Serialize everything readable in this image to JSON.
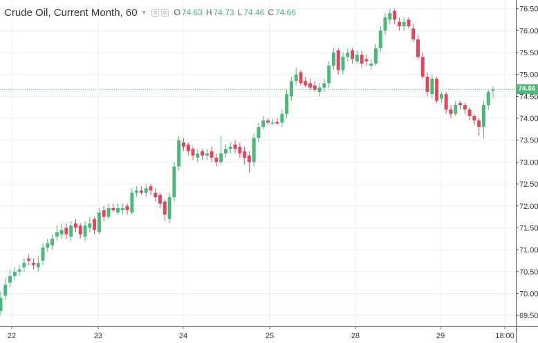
{
  "chart_data": {
    "type": "candlestick",
    "symbol": "Crude Oil, Current Month, 60",
    "ohlc": {
      "o": "74.63",
      "h": "74.73",
      "l": "74.46",
      "c": "74.66"
    },
    "last_price_label": "74.66",
    "last_price": 74.66,
    "ylim": [
      69.25,
      76.7
    ],
    "y_ticks": [
      "69.50",
      "70.00",
      "70.50",
      "71.00",
      "71.50",
      "72.00",
      "72.50",
      "73.00",
      "73.50",
      "74.00",
      "74.50",
      "75.00",
      "75.50",
      "76.00",
      "76.50"
    ],
    "x_ticks": [
      "22",
      "23",
      "24",
      "25",
      "28",
      "29",
      "18:00"
    ],
    "x_tick_positions": [
      17,
      142,
      265,
      390,
      514,
      637,
      730
    ],
    "colors": {
      "up": "#4cb87a",
      "down": "#e0485f",
      "grid": "#e9eef3",
      "text": "#333333"
    },
    "closes": [
      69.9,
      70.2,
      70.4,
      70.5,
      70.55,
      70.7,
      70.75,
      70.65,
      70.7,
      71.05,
      71.15,
      71.25,
      71.4,
      71.45,
      71.35,
      71.55,
      71.5,
      71.35,
      71.55,
      71.6,
      71.45,
      71.85,
      71.75,
      71.95,
      71.9,
      71.95,
      71.95,
      71.9,
      72.3,
      72.35,
      72.3,
      72.4,
      72.35,
      72.2,
      72.05,
      71.8,
      72.2,
      72.9,
      73.5,
      73.35,
      73.25,
      73.15,
      73.2,
      73.15,
      73.2,
      73.1,
      73.0,
      73.2,
      73.3,
      73.35,
      73.3,
      73.2,
      73.1,
      73.0,
      73.55,
      73.8,
      73.95,
      73.9,
      73.9,
      73.88,
      74.1,
      74.55,
      74.85,
      75.0,
      74.8,
      74.75,
      74.7,
      74.65,
      74.7,
      74.8,
      75.2,
      75.5,
      75.1,
      75.4,
      75.5,
      75.35,
      75.45,
      75.25,
      75.3,
      75.25,
      75.6,
      76.0,
      76.3,
      76.4,
      76.25,
      76.1,
      76.2,
      76.1,
      75.8,
      75.4,
      74.95,
      74.6,
      74.9,
      74.4,
      74.55,
      74.2,
      74.1,
      74.3,
      74.3,
      74.2,
      74.05,
      73.95,
      73.8,
      74.3,
      74.6,
      74.66
    ],
    "opens": [
      69.6,
      69.95,
      70.25,
      70.4,
      70.5,
      70.6,
      70.8,
      70.7,
      70.6,
      70.75,
      71.05,
      71.1,
      71.3,
      71.35,
      71.5,
      71.3,
      71.6,
      71.55,
      71.3,
      71.5,
      71.7,
      71.4,
      71.9,
      71.75,
      71.95,
      71.85,
      71.9,
      72.0,
      71.85,
      72.3,
      72.35,
      72.3,
      72.45,
      72.3,
      72.25,
      72.1,
      71.7,
      72.2,
      72.9,
      73.45,
      73.4,
      73.3,
      73.1,
      73.25,
      73.15,
      73.25,
      73.1,
      73.0,
      73.2,
      73.3,
      73.4,
      73.35,
      73.25,
      73.15,
      73.0,
      73.55,
      73.8,
      73.95,
      73.88,
      73.92,
      73.9,
      74.1,
      74.5,
      74.85,
      75.05,
      74.85,
      74.8,
      74.75,
      74.6,
      74.7,
      74.8,
      75.2,
      75.55,
      75.1,
      75.4,
      75.55,
      75.3,
      75.45,
      75.35,
      75.2,
      75.25,
      75.6,
      76.0,
      76.25,
      76.45,
      76.2,
      76.1,
      76.25,
      76.05,
      75.8,
      75.4,
      74.95,
      74.55,
      74.9,
      74.45,
      74.55,
      74.2,
      74.1,
      74.35,
      74.3,
      74.2,
      74.05,
      73.95,
      73.8,
      74.3,
      74.63
    ],
    "highs": [
      70.05,
      70.35,
      70.55,
      70.6,
      70.65,
      70.8,
      70.9,
      70.8,
      70.85,
      71.15,
      71.25,
      71.35,
      71.55,
      71.6,
      71.6,
      71.65,
      71.7,
      71.6,
      71.65,
      71.75,
      71.75,
      71.95,
      72.0,
      72.05,
      72.05,
      72.05,
      72.05,
      72.05,
      72.4,
      72.45,
      72.45,
      72.5,
      72.5,
      72.4,
      72.3,
      72.15,
      72.3,
      73.0,
      73.6,
      73.55,
      73.45,
      73.35,
      73.3,
      73.3,
      73.3,
      73.35,
      73.2,
      73.6,
      73.4,
      73.45,
      73.5,
      73.45,
      73.35,
      73.25,
      73.65,
      73.9,
      74.05,
      74.0,
      73.98,
      74.0,
      74.2,
      74.65,
      74.95,
      75.15,
      75.1,
      74.95,
      74.9,
      74.85,
      74.8,
      74.9,
      75.3,
      75.6,
      75.6,
      75.5,
      75.6,
      75.6,
      75.55,
      75.55,
      75.45,
      75.35,
      75.7,
      76.1,
      76.4,
      76.5,
      76.5,
      76.3,
      76.3,
      76.3,
      76.15,
      75.9,
      75.5,
      75.05,
      75.0,
      74.95,
      74.6,
      74.6,
      74.3,
      74.4,
      74.4,
      74.35,
      74.25,
      74.1,
      74.0,
      74.4,
      74.65,
      74.73
    ],
    "lows": [
      69.5,
      69.85,
      70.15,
      70.3,
      70.4,
      70.5,
      70.65,
      70.55,
      70.5,
      70.65,
      70.95,
      71.0,
      71.2,
      71.25,
      71.25,
      71.2,
      71.4,
      71.25,
      71.2,
      71.4,
      71.35,
      71.35,
      71.65,
      71.7,
      71.85,
      71.8,
      71.8,
      71.8,
      71.8,
      72.2,
      72.25,
      72.2,
      72.25,
      72.1,
      71.95,
      71.65,
      71.6,
      72.1,
      72.8,
      73.25,
      73.15,
      73.05,
      73.0,
      73.05,
      73.05,
      73.0,
      72.9,
      72.95,
      73.1,
      73.2,
      73.2,
      73.1,
      72.95,
      72.75,
      72.9,
      73.45,
      73.75,
      73.85,
      73.85,
      73.85,
      73.8,
      74.0,
      74.4,
      74.75,
      74.75,
      74.7,
      74.65,
      74.6,
      74.5,
      74.6,
      74.7,
      75.1,
      75.0,
      75.0,
      75.3,
      75.25,
      75.25,
      75.15,
      75.2,
      75.1,
      75.2,
      75.5,
      75.9,
      76.15,
      76.15,
      76.0,
      76.0,
      76.05,
      75.75,
      75.35,
      74.9,
      74.5,
      74.45,
      74.35,
      74.35,
      74.1,
      74.0,
      74.05,
      74.2,
      74.1,
      73.95,
      73.85,
      73.6,
      73.55,
      74.2,
      74.46
    ]
  }
}
